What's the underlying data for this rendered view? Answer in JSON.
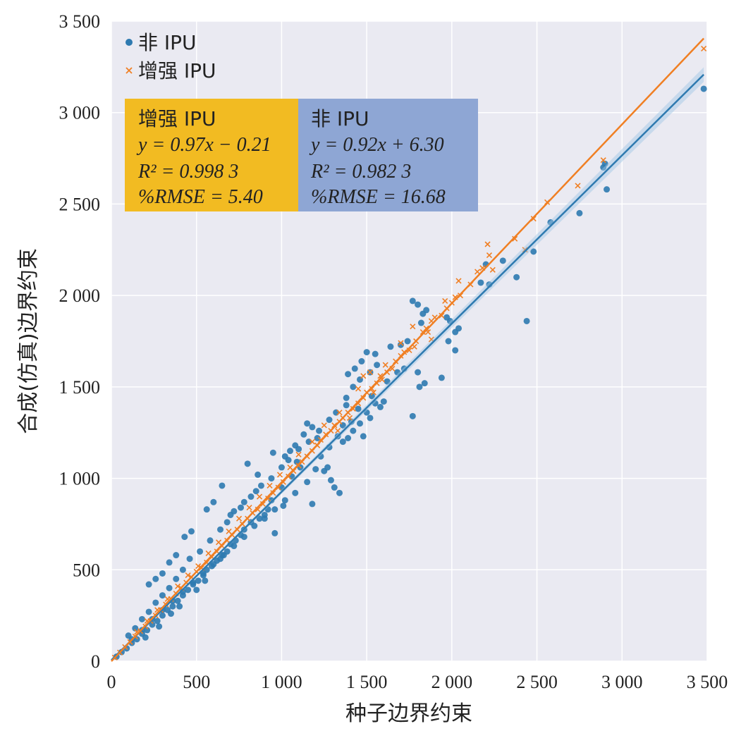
{
  "chart_data": {
    "type": "scatter",
    "xlabel": "种子边界约束",
    "ylabel": "合成(仿真)边界约束",
    "xlim": [
      0,
      3500
    ],
    "ylim": [
      0,
      3500
    ],
    "xticks": [
      0,
      500,
      1000,
      1500,
      2000,
      2500,
      3000,
      3500
    ],
    "yticks": [
      0,
      500,
      1000,
      1500,
      2000,
      2500,
      3000,
      3500
    ],
    "xtick_labels": [
      "0",
      "500",
      "1 000",
      "1 500",
      "2 000",
      "2 500",
      "3 000",
      "3 500"
    ],
    "ytick_labels": [
      "0",
      "500",
      "1 000",
      "1 500",
      "2 000",
      "2 500",
      "3 000",
      "3 500"
    ],
    "grid": true,
    "legend_position": "top-left",
    "series": [
      {
        "name": "非 IPU",
        "marker": "circle",
        "color": "#2e7ab0",
        "fit": {
          "slope": 0.92,
          "intercept": 6.3
        },
        "points": [
          [
            1770,
            1970
          ],
          [
            1800,
            1950
          ],
          [
            1850,
            1920
          ],
          [
            1830,
            1900
          ],
          [
            1970,
            1880
          ],
          [
            1990,
            1860
          ],
          [
            1820,
            1850
          ],
          [
            2040,
            1820
          ],
          [
            2020,
            1800
          ],
          [
            1980,
            1750
          ],
          [
            1740,
            1750
          ],
          [
            1700,
            1730
          ],
          [
            1640,
            1720
          ],
          [
            2020,
            1700
          ],
          [
            2440,
            1860
          ],
          [
            2380,
            2100
          ],
          [
            2200,
            2170
          ],
          [
            2300,
            2190
          ],
          [
            2480,
            2240
          ],
          [
            2170,
            2070
          ],
          [
            2220,
            2060
          ],
          [
            2750,
            2450
          ],
          [
            2580,
            2400
          ],
          [
            2900,
            2720
          ],
          [
            2910,
            2580
          ],
          [
            3480,
            3130
          ],
          [
            2890,
            2700
          ],
          [
            1770,
            1340
          ],
          [
            1940,
            1550
          ],
          [
            1720,
            1600
          ],
          [
            1800,
            1580
          ],
          [
            1840,
            1520
          ],
          [
            1810,
            1500
          ],
          [
            1530,
            1450
          ],
          [
            1550,
            1410
          ],
          [
            1600,
            1420
          ],
          [
            1580,
            1390
          ],
          [
            1500,
            1360
          ],
          [
            1520,
            1330
          ],
          [
            1450,
            1380
          ],
          [
            1380,
            1400
          ],
          [
            1460,
            1300
          ],
          [
            1420,
            1260
          ],
          [
            1480,
            1230
          ],
          [
            1390,
            1220
          ],
          [
            1360,
            1200
          ],
          [
            1500,
            1690
          ],
          [
            1550,
            1680
          ],
          [
            1470,
            1640
          ],
          [
            1430,
            1600
          ],
          [
            1390,
            1570
          ],
          [
            1680,
            1580
          ],
          [
            1620,
            1530
          ],
          [
            1250,
            1040
          ],
          [
            1290,
            990
          ],
          [
            1340,
            920
          ],
          [
            1270,
            1060
          ],
          [
            1310,
            950
          ],
          [
            1050,
            1150
          ],
          [
            1020,
            1120
          ],
          [
            1080,
            1180
          ],
          [
            1180,
            1280
          ],
          [
            1130,
            1240
          ],
          [
            1210,
            1220
          ],
          [
            1150,
            1300
          ],
          [
            1090,
            1090
          ],
          [
            1110,
            1060
          ],
          [
            1060,
            1010
          ],
          [
            1000,
            950
          ],
          [
            940,
            880
          ],
          [
            920,
            830
          ],
          [
            900,
            800
          ],
          [
            870,
            780
          ],
          [
            820,
            760
          ],
          [
            780,
            720
          ],
          [
            760,
            690
          ],
          [
            730,
            660
          ],
          [
            700,
            640
          ],
          [
            680,
            600
          ],
          [
            650,
            580
          ],
          [
            620,
            550
          ],
          [
            590,
            520
          ],
          [
            560,
            500
          ],
          [
            540,
            470
          ],
          [
            510,
            440
          ],
          [
            480,
            420
          ],
          [
            450,
            390
          ],
          [
            420,
            360
          ],
          [
            390,
            330
          ],
          [
            360,
            300
          ],
          [
            330,
            280
          ],
          [
            300,
            250
          ],
          [
            270,
            220
          ],
          [
            240,
            200
          ],
          [
            210,
            170
          ],
          [
            180,
            150
          ],
          [
            150,
            120
          ],
          [
            120,
            100
          ],
          [
            90,
            70
          ],
          [
            60,
            50
          ],
          [
            30,
            25
          ],
          [
            430,
            680
          ],
          [
            470,
            710
          ],
          [
            340,
            540
          ],
          [
            380,
            580
          ],
          [
            300,
            480
          ],
          [
            260,
            450
          ],
          [
            220,
            420
          ],
          [
            560,
            830
          ],
          [
            600,
            870
          ],
          [
            650,
            960
          ],
          [
            800,
            1080
          ],
          [
            860,
            1020
          ],
          [
            950,
            1140
          ],
          [
            850,
            930
          ],
          [
            780,
            870
          ],
          [
            720,
            820
          ],
          [
            680,
            760
          ],
          [
            640,
            720
          ],
          [
            580,
            660
          ],
          [
            520,
            600
          ],
          [
            460,
            560
          ],
          [
            420,
            500
          ],
          [
            380,
            450
          ],
          [
            340,
            400
          ],
          [
            300,
            360
          ],
          [
            260,
            320
          ],
          [
            220,
            270
          ],
          [
            180,
            230
          ],
          [
            140,
            180
          ],
          [
            100,
            140
          ],
          [
            700,
            800
          ],
          [
            760,
            840
          ],
          [
            820,
            900
          ],
          [
            880,
            960
          ],
          [
            940,
            1000
          ],
          [
            1000,
            1060
          ],
          [
            1040,
            1100
          ],
          [
            1100,
            1160
          ],
          [
            1160,
            1200
          ],
          [
            1220,
            1260
          ],
          [
            1280,
            1320
          ],
          [
            1320,
            1360
          ],
          [
            1380,
            1440
          ],
          [
            1420,
            1500
          ],
          [
            1460,
            1540
          ],
          [
            1520,
            1580
          ],
          [
            1560,
            1620
          ],
          [
            1080,
            920
          ],
          [
            1020,
            880
          ],
          [
            960,
            830
          ],
          [
            900,
            780
          ],
          [
            840,
            740
          ],
          [
            780,
            680
          ],
          [
            720,
            630
          ],
          [
            660,
            580
          ],
          [
            600,
            530
          ],
          [
            540,
            480
          ],
          [
            480,
            430
          ],
          [
            420,
            380
          ],
          [
            360,
            330
          ],
          [
            300,
            280
          ],
          [
            240,
            230
          ],
          [
            180,
            170
          ],
          [
            120,
            120
          ],
          [
            960,
            700
          ],
          [
            1010,
            850
          ],
          [
            1150,
            980
          ],
          [
            1200,
            1050
          ],
          [
            1230,
            1120
          ],
          [
            1280,
            1170
          ],
          [
            1330,
            1230
          ],
          [
            1360,
            1290
          ],
          [
            1410,
            1310
          ],
          [
            1180,
            860
          ],
          [
            640,
            560
          ],
          [
            500,
            390
          ],
          [
            550,
            440
          ],
          [
            350,
            260
          ],
          [
            400,
            300
          ],
          [
            280,
            190
          ],
          [
            200,
            130
          ]
        ]
      },
      {
        "name": "增强 IPU",
        "marker": "x",
        "color": "#f07f23",
        "fit": {
          "slope": 0.97,
          "intercept": -0.21
        },
        "points": [
          [
            3480,
            3350
          ],
          [
            2890,
            2740
          ],
          [
            2740,
            2600
          ],
          [
            2560,
            2510
          ],
          [
            2480,
            2420
          ],
          [
            2430,
            2250
          ],
          [
            2370,
            2310
          ],
          [
            2210,
            2280
          ],
          [
            2220,
            2220
          ],
          [
            2240,
            2140
          ],
          [
            2180,
            2150
          ],
          [
            2150,
            2130
          ],
          [
            2110,
            2060
          ],
          [
            2040,
            2080
          ],
          [
            2050,
            2000
          ],
          [
            2020,
            1990
          ],
          [
            2000,
            1960
          ],
          [
            1970,
            1930
          ],
          [
            1960,
            1970
          ],
          [
            1940,
            1890
          ],
          [
            1900,
            1880
          ],
          [
            1880,
            1860
          ],
          [
            1850,
            1820
          ],
          [
            1830,
            1800
          ],
          [
            1770,
            1830
          ],
          [
            1790,
            1750
          ],
          [
            1750,
            1700
          ],
          [
            1720,
            1690
          ],
          [
            1700,
            1670
          ],
          [
            1670,
            1640
          ],
          [
            1650,
            1600
          ],
          [
            1620,
            1580
          ],
          [
            1590,
            1540
          ],
          [
            1560,
            1520
          ],
          [
            1530,
            1490
          ],
          [
            1500,
            1470
          ],
          [
            1480,
            1440
          ],
          [
            1450,
            1410
          ],
          [
            1420,
            1380
          ],
          [
            1390,
            1360
          ],
          [
            1360,
            1330
          ],
          [
            1340,
            1310
          ],
          [
            1310,
            1290
          ],
          [
            1290,
            1260
          ],
          [
            1260,
            1240
          ],
          [
            1230,
            1210
          ],
          [
            1210,
            1180
          ],
          [
            1180,
            1150
          ],
          [
            1150,
            1120
          ],
          [
            1120,
            1090
          ],
          [
            1100,
            1070
          ],
          [
            1070,
            1040
          ],
          [
            1040,
            1010
          ],
          [
            1010,
            980
          ],
          [
            980,
            950
          ],
          [
            950,
            920
          ],
          [
            920,
            890
          ],
          [
            890,
            860
          ],
          [
            860,
            830
          ],
          [
            830,
            810
          ],
          [
            800,
            780
          ],
          [
            770,
            750
          ],
          [
            740,
            720
          ],
          [
            710,
            690
          ],
          [
            680,
            660
          ],
          [
            650,
            630
          ],
          [
            620,
            600
          ],
          [
            590,
            570
          ],
          [
            560,
            540
          ],
          [
            530,
            510
          ],
          [
            500,
            490
          ],
          [
            470,
            460
          ],
          [
            440,
            430
          ],
          [
            410,
            400
          ],
          [
            380,
            370
          ],
          [
            350,
            340
          ],
          [
            320,
            310
          ],
          [
            290,
            280
          ],
          [
            260,
            250
          ],
          [
            230,
            220
          ],
          [
            200,
            190
          ],
          [
            170,
            165
          ],
          [
            140,
            135
          ],
          [
            110,
            105
          ],
          [
            80,
            78
          ],
          [
            50,
            48
          ],
          [
            20,
            20
          ],
          [
            1340,
            1360
          ],
          [
            1400,
            1330
          ],
          [
            1480,
            1560
          ],
          [
            1520,
            1580
          ],
          [
            1580,
            1560
          ],
          [
            1610,
            1620
          ],
          [
            1540,
            1470
          ],
          [
            1450,
            1490
          ],
          [
            1700,
            1740
          ],
          [
            1780,
            1720
          ],
          [
            1860,
            1800
          ],
          [
            1880,
            1760
          ],
          [
            1330,
            1260
          ],
          [
            1250,
            1290
          ],
          [
            1180,
            1200
          ],
          [
            1100,
            1130
          ],
          [
            1050,
            1060
          ],
          [
            990,
            1020
          ],
          [
            930,
            960
          ],
          [
            870,
            900
          ],
          [
            810,
            840
          ],
          [
            750,
            780
          ],
          [
            690,
            710
          ],
          [
            630,
            650
          ],
          [
            570,
            590
          ],
          [
            510,
            520
          ],
          [
            450,
            470
          ],
          [
            390,
            410
          ],
          [
            330,
            340
          ],
          [
            270,
            280
          ],
          [
            210,
            220
          ],
          [
            150,
            160
          ]
        ]
      }
    ],
    "stats_boxes": [
      {
        "title": "增强 IPU",
        "equation": "y = 0.97x − 0.21",
        "r2": "R² = 0.998 3",
        "rmse": "%RMSE = 5.40",
        "bg": "#f2bb22"
      },
      {
        "title": "非 IPU",
        "equation": "y = 0.92x + 6.30",
        "r2": "R² = 0.982 3",
        "rmse": "%RMSE = 16.68",
        "bg": "#8ea6d4"
      }
    ],
    "colors": {
      "plot_bg": "#eaeaf2",
      "grid": "#ffffff"
    }
  }
}
